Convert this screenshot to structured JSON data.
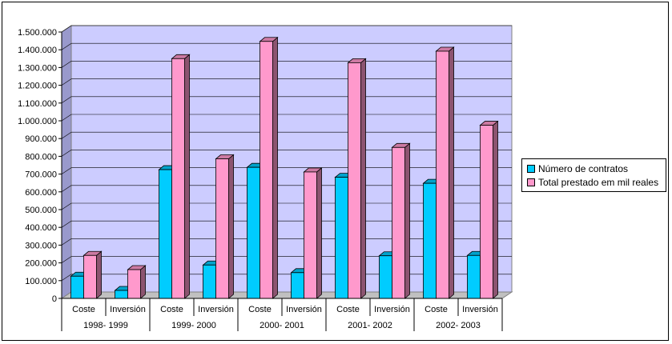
{
  "chart_data": {
    "type": "bar",
    "y_axis": {
      "ylim": [
        0,
        1500000
      ],
      "tick_labels": [
        "0",
        "100.000",
        "200.000",
        "300.000",
        "400.000",
        "500.000",
        "600.000",
        "700.000",
        "800.000",
        "900.000",
        "1.000.000",
        "1.100.000",
        "1.200.000",
        "1.300.000",
        "1.400.000",
        "1.500.000"
      ]
    },
    "groups": [
      "1998- 1999",
      "1999- 2000",
      "2000- 2001",
      "2001- 2002",
      "2002- 2003"
    ],
    "categories": [
      "Coste",
      "Inversión",
      "Coste",
      "Inversión",
      "Coste",
      "Inversión",
      "Coste",
      "Inversión",
      "Coste",
      "Inversión"
    ],
    "series": [
      {
        "name": "Número de contratos",
        "color": "#00CCFF",
        "values": [
          125000,
          45000,
          725000,
          188000,
          738000,
          145000,
          682000,
          240000,
          648000,
          242000
        ]
      },
      {
        "name": "Total prestado em mil reales",
        "color": "#FF99CC",
        "values": [
          242000,
          162000,
          1350000,
          786000,
          1447000,
          712000,
          1327000,
          850000,
          1392000,
          975000
        ]
      }
    ],
    "plot_background": "#CCCCFF",
    "gridlines": true,
    "legend_position": "right"
  }
}
